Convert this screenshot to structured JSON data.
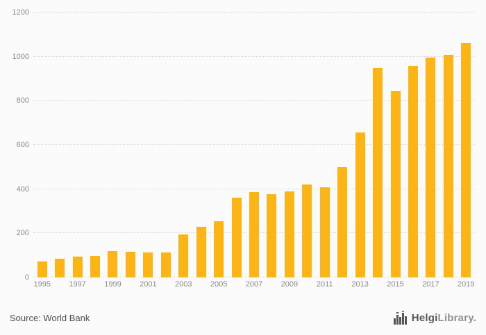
{
  "chart_data": {
    "type": "bar",
    "x": [
      1995,
      1996,
      1997,
      1998,
      1999,
      2000,
      2001,
      2002,
      2003,
      2004,
      2005,
      2006,
      2007,
      2008,
      2009,
      2010,
      2011,
      2012,
      2013,
      2014,
      2015,
      2016,
      2017,
      2018,
      2019
    ],
    "values": [
      72,
      85,
      95,
      98,
      118,
      115,
      114,
      113,
      195,
      230,
      255,
      360,
      385,
      378,
      390,
      420,
      408,
      500,
      658,
      950,
      845,
      958,
      995,
      1008,
      1063
    ],
    "title": "",
    "xlabel": "",
    "ylabel": "",
    "ylim": [
      0,
      1200
    ],
    "yticks": [
      0,
      200,
      400,
      600,
      800,
      1000,
      1200
    ],
    "xtick_labels": [
      "1995",
      "1997",
      "1999",
      "2001",
      "2003",
      "2005",
      "2007",
      "2009",
      "2011",
      "2013",
      "2015",
      "2017",
      "2019"
    ],
    "grid": true,
    "legend": "none",
    "bar_color": "#FCB514"
  },
  "footer": {
    "source_label": "Source: World Bank",
    "logo": {
      "primary": "Helgi",
      "secondary": "Library",
      "suffix": "."
    }
  },
  "colors": {
    "bar": "#FCB514",
    "gridline": "#d8d8d8",
    "tick_text": "#8a8a8a",
    "source_text": "#4d4d4d",
    "logo_dark": "#55565a",
    "logo_light": "#8f9093",
    "background": "#fbfbfb"
  }
}
